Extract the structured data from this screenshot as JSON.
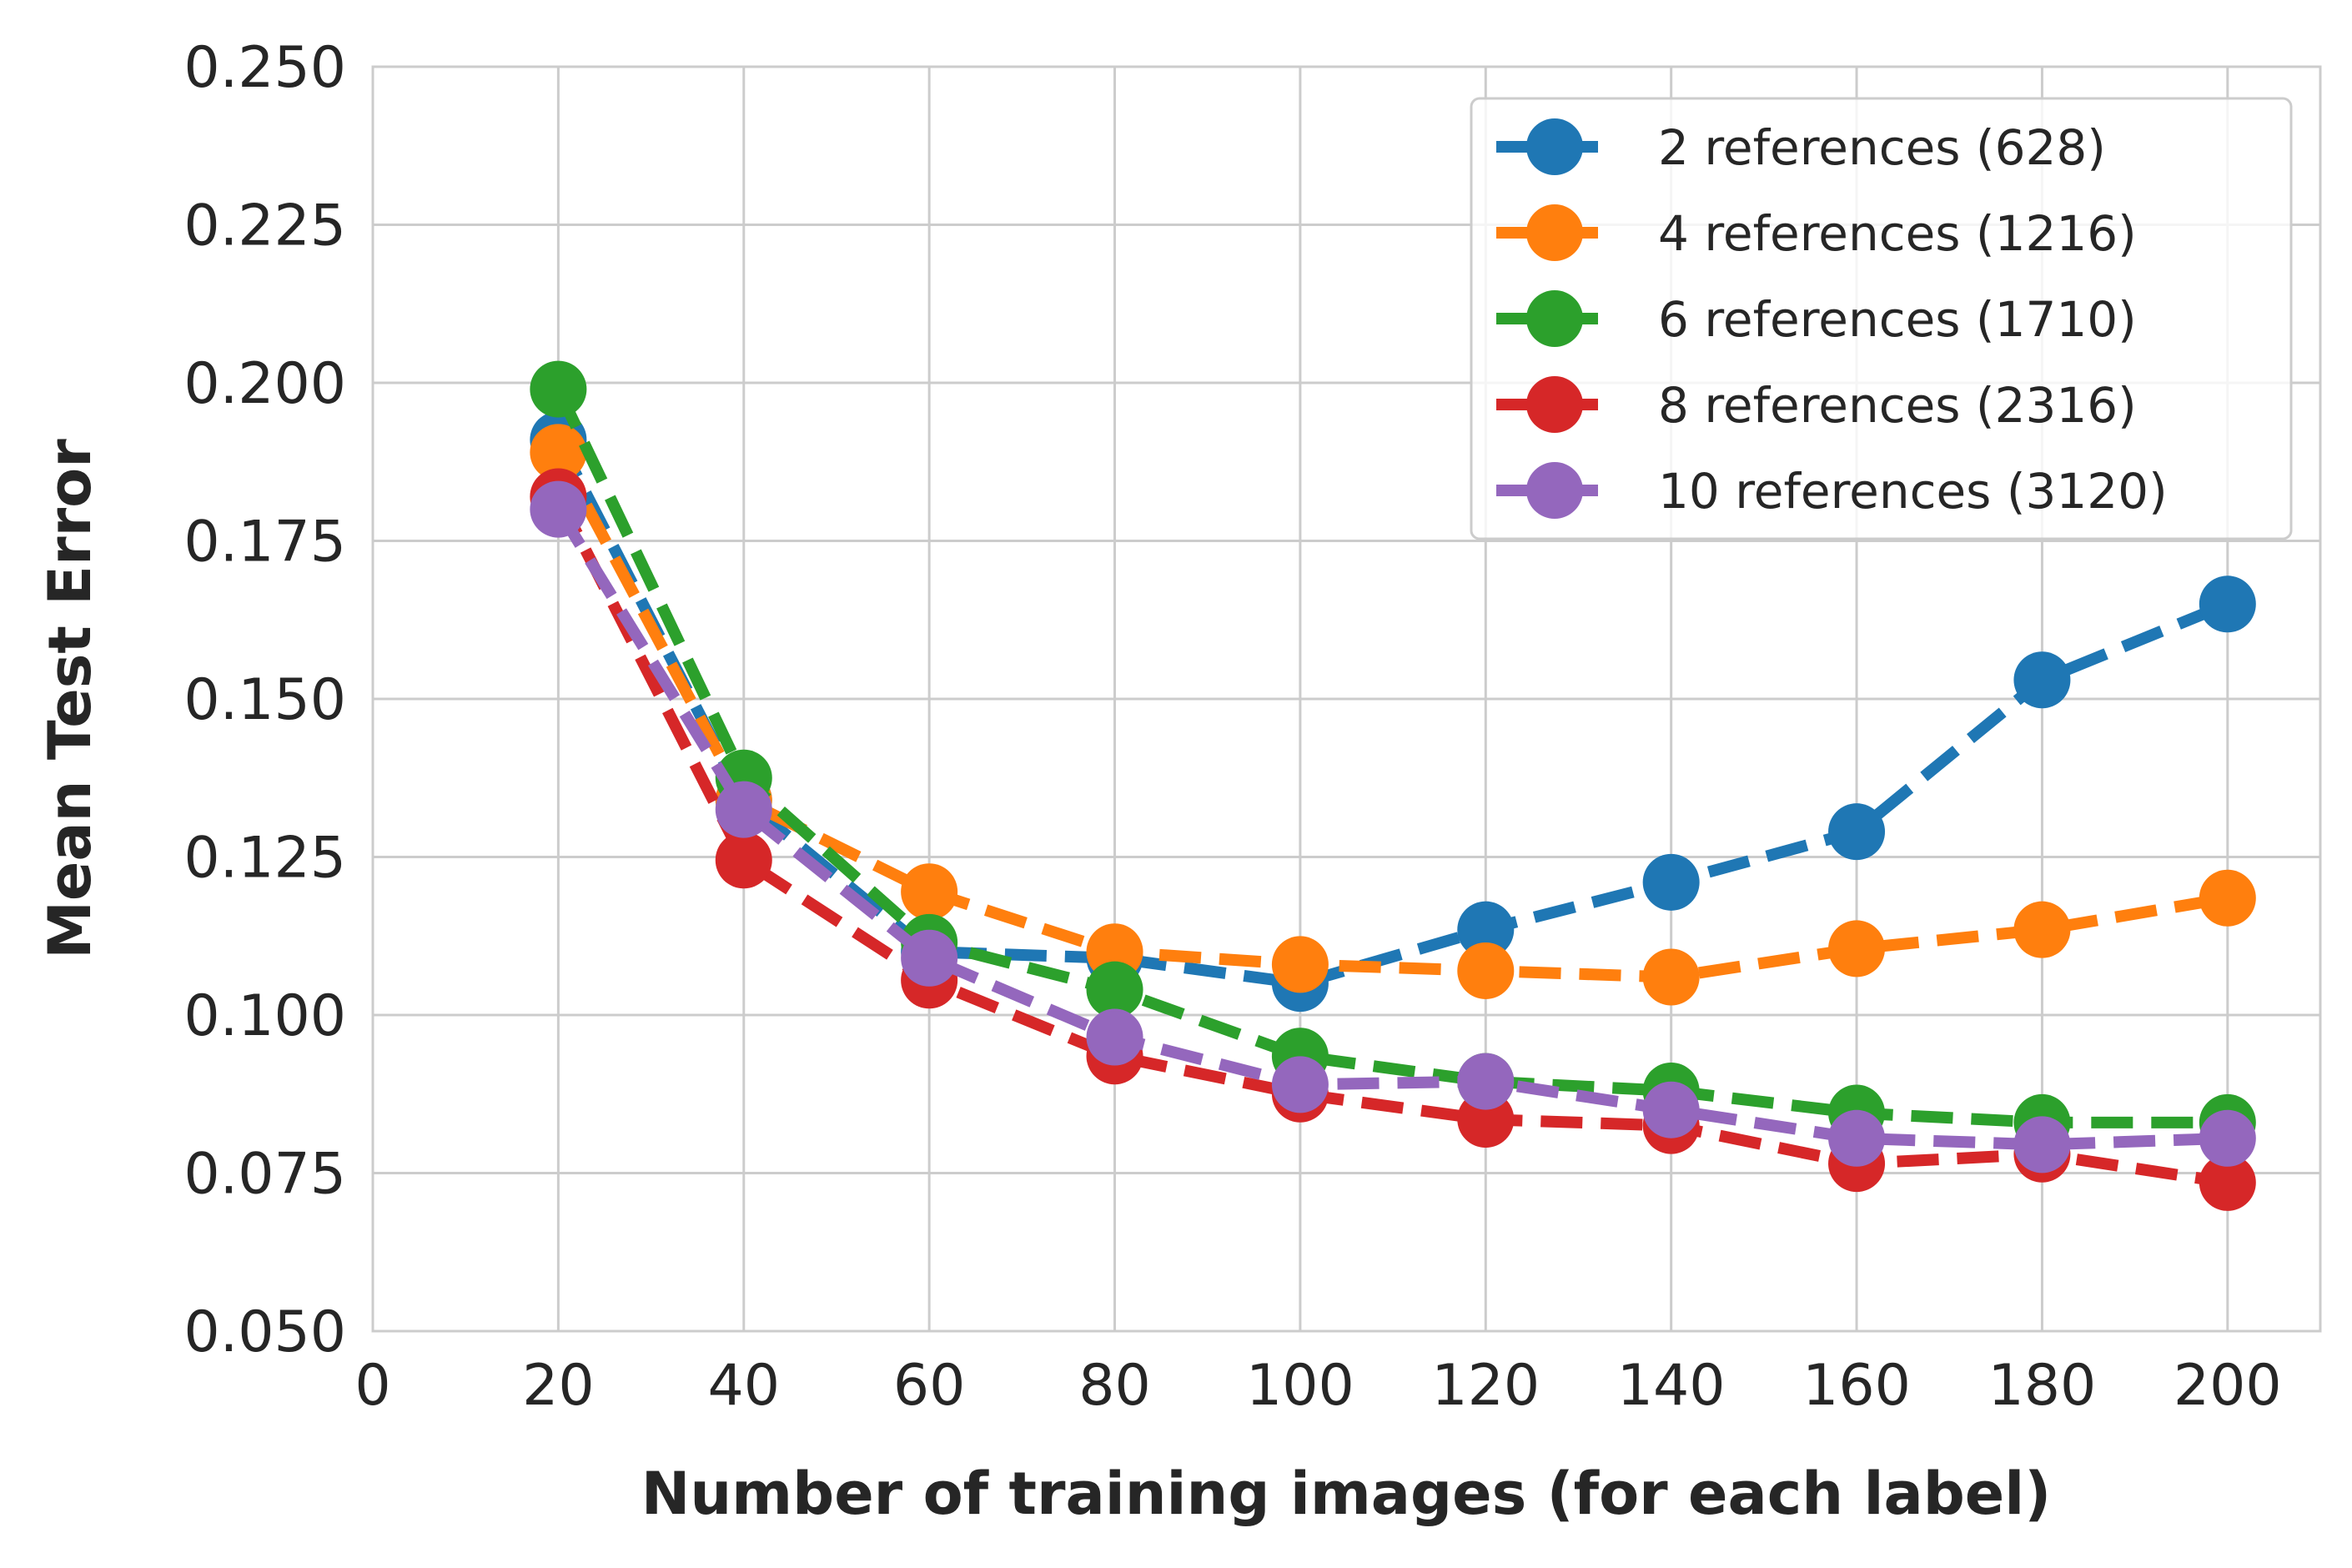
{
  "chart_data": {
    "type": "line",
    "xlabel": "Number of training images (for each label)",
    "ylabel": "Mean Test Error",
    "xlim": [
      0,
      210
    ],
    "ylim": [
      0.05,
      0.25
    ],
    "xticks": [
      0,
      20,
      40,
      60,
      80,
      100,
      120,
      140,
      160,
      180,
      200
    ],
    "xtick_labels": [
      "0",
      "20",
      "40",
      "60",
      "80",
      "100",
      "120",
      "140",
      "160",
      "180",
      "200"
    ],
    "yticks": [
      0.05,
      0.075,
      0.1,
      0.125,
      0.15,
      0.175,
      0.2,
      0.225,
      0.25
    ],
    "ytick_labels": [
      "0.050",
      "0.075",
      "0.100",
      "0.125",
      "0.150",
      "0.175",
      "0.200",
      "0.225",
      "0.250"
    ],
    "grid": true,
    "legend_position": "top-right",
    "x": [
      20,
      40,
      60,
      80,
      100,
      120,
      140,
      160,
      180,
      200
    ],
    "series": [
      {
        "name": "2 references (628)",
        "color": "#1f77b4",
        "values": [
          0.191,
          0.134,
          0.11,
          0.109,
          0.105,
          0.1135,
          0.121,
          0.129,
          0.153,
          0.165
        ]
      },
      {
        "name": "4 references (1216)",
        "color": "#ff7f0e",
        "values": [
          0.189,
          0.134,
          0.1195,
          0.11,
          0.108,
          0.107,
          0.106,
          0.1105,
          0.1135,
          0.1185
        ]
      },
      {
        "name": "6 references (1710)",
        "color": "#2ca02c",
        "values": [
          0.199,
          0.1375,
          0.1115,
          0.104,
          0.0935,
          0.0895,
          0.088,
          0.0845,
          0.083,
          0.083
        ]
      },
      {
        "name": "8 references (2316)",
        "color": "#d62728",
        "values": [
          0.182,
          0.1245,
          0.1055,
          0.0935,
          0.0875,
          0.0835,
          0.0825,
          0.0765,
          0.078,
          0.0735
        ]
      },
      {
        "name": "10 references (3120)",
        "color": "#9467bd",
        "values": [
          0.18,
          0.1325,
          0.109,
          0.0965,
          0.089,
          0.0895,
          0.085,
          0.0805,
          0.0795,
          0.0805
        ]
      }
    ]
  }
}
